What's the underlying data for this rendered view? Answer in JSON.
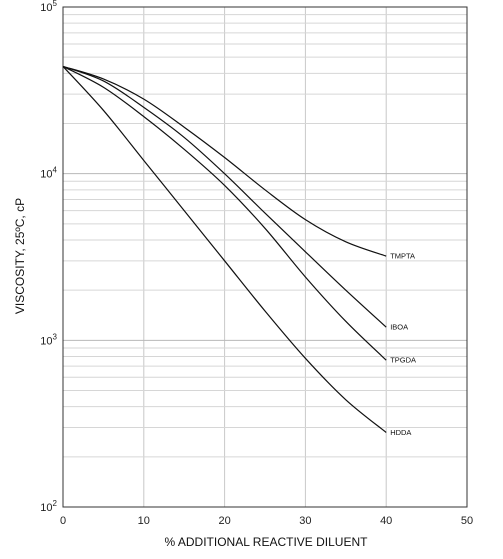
{
  "chart_data": {
    "type": "line",
    "title": "",
    "xlabel": "% ADDITIONAL REACTIVE DILUENT",
    "ylabel": "VISCOSITY, 25ºC, cP",
    "xlim": [
      0,
      50
    ],
    "ylim": [
      100,
      100000
    ],
    "yscale": "log",
    "grid": true,
    "legend": "inline labels at line ends",
    "x_ticks": [
      "0",
      "10",
      "20",
      "30",
      "40",
      "50"
    ],
    "y_ticks": [
      {
        "base": "10",
        "exp": "5"
      },
      {
        "base": "10",
        "exp": "4"
      },
      {
        "base": "10",
        "exp": "3"
      },
      {
        "base": "10",
        "exp": "2"
      }
    ],
    "series": [
      {
        "name": "TMPTA",
        "x": [
          0,
          5,
          10,
          15,
          20,
          25,
          30,
          35,
          40
        ],
        "y": [
          44000,
          37000,
          28000,
          19000,
          12500,
          8000,
          5300,
          3900,
          3200
        ]
      },
      {
        "name": "IBOA",
        "x": [
          0,
          5,
          10,
          15,
          20,
          25,
          30,
          35,
          40
        ],
        "y": [
          44000,
          36000,
          25000,
          16500,
          10000,
          5800,
          3400,
          2000,
          1200
        ]
      },
      {
        "name": "TPGDA",
        "x": [
          0,
          5,
          10,
          15,
          20,
          25,
          30,
          35,
          40
        ],
        "y": [
          44000,
          33000,
          22000,
          14000,
          8500,
          4700,
          2400,
          1300,
          760
        ]
      },
      {
        "name": "HDDA",
        "x": [
          0,
          5,
          10,
          15,
          20,
          25,
          30,
          35,
          40
        ],
        "y": [
          44000,
          24000,
          12000,
          6000,
          3000,
          1500,
          780,
          440,
          280
        ]
      }
    ]
  }
}
